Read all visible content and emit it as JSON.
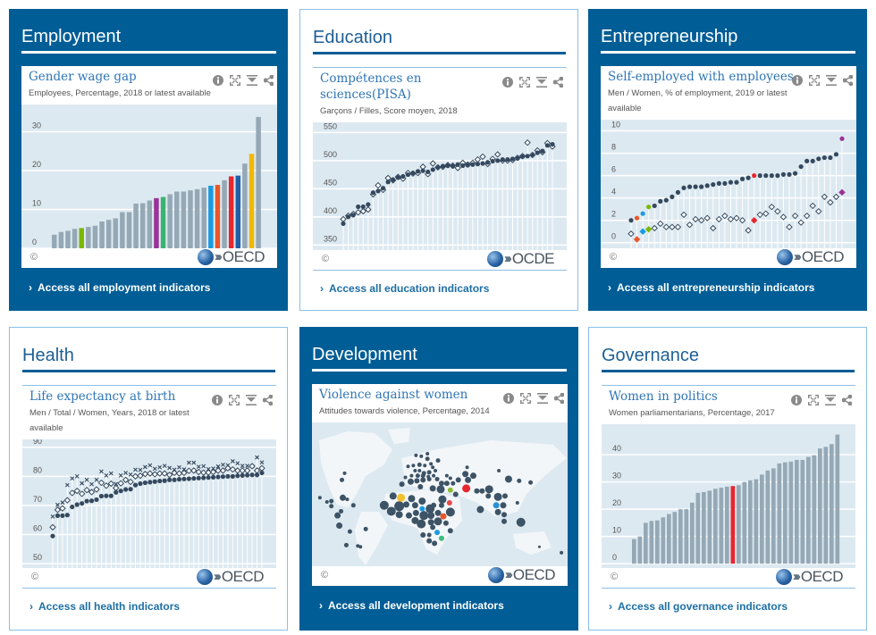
{
  "colors": {
    "dark_card": "#005d96",
    "bar_gray": "#95a8b5",
    "dot_dark": "#34495e",
    "plot_bg": "#dde9f1"
  },
  "cards": [
    {
      "heading": "Employment",
      "chart_title": "Gender wage gap",
      "chart_subtitle": "Employees, Percentage, 2018 or latest available",
      "copyright": "©",
      "logo": "OECD",
      "link": "Access all employment indicators",
      "theme": "dark"
    },
    {
      "heading": "Education",
      "chart_title": "Compétences en sciences(PISA)",
      "chart_subtitle": "Garçons / Filles, Score moyen, 2018",
      "copyright": "©",
      "logo": "OCDE",
      "link": "Access all education indicators",
      "theme": "light"
    },
    {
      "heading": "Entrepreneurship",
      "chart_title": "Self-employed with employees",
      "chart_subtitle": "Men / Women, % of employment, 2019 or latest available",
      "copyright": "©",
      "logo": "OECD",
      "link": "Access all entrepreneurship indicators",
      "theme": "dark"
    },
    {
      "heading": "Health",
      "chart_title": "Life expectancy at birth",
      "chart_subtitle": "Men / Total / Women, Years, 2018 or latest available",
      "copyright": "©",
      "logo": "OECD",
      "link": "Access all health indicators",
      "theme": "light"
    },
    {
      "heading": "Development",
      "chart_title": "Violence against women",
      "chart_subtitle": "Attitudes towards violence, Percentage, 2014",
      "copyright": "©",
      "logo": "OECD",
      "link": "Access all development indicators",
      "theme": "dark"
    },
    {
      "heading": "Governance",
      "chart_title": "Women in politics",
      "chart_subtitle": "Women parliamentarians, Percentage, 2017",
      "copyright": "©",
      "logo": "OECD",
      "link": "Access all governance indicators",
      "theme": "light"
    }
  ],
  "tool_icons": [
    "info-icon",
    "expand-icon",
    "download-icon",
    "share-icon"
  ],
  "chart_data": [
    {
      "type": "bar",
      "ylim": [
        0,
        37
      ],
      "yticks": [
        0,
        10,
        20,
        30
      ],
      "grid": true,
      "values": [
        3.5,
        4.2,
        4.5,
        5,
        5.2,
        5.5,
        5.8,
        6.9,
        7.3,
        7.7,
        9.3,
        9.3,
        11.5,
        11.6,
        12.3,
        12.9,
        13.2,
        13.9,
        14.6,
        14.6,
        14.9,
        15.2,
        15.6,
        16.1,
        16.3,
        17.5,
        18.5,
        18.7,
        21.8,
        24.3,
        33.8
      ],
      "highlights": {
        "4": "#7ab800",
        "15": "#993399",
        "16": "#3cb371",
        "23": "#1a9be0",
        "24": "#e8572a",
        "26": "#e8262e",
        "27": "#1f5fa8",
        "29": "#f2b800"
      }
    },
    {
      "type": "scatter",
      "ylim": [
        341,
        568
      ],
      "yticks": [
        350,
        400,
        450,
        500,
        550
      ],
      "grid": true,
      "series": [
        {
          "marker": "dot",
          "values": [
            388,
            400,
            403,
            418,
            418,
            422,
            443,
            446,
            451,
            462,
            466,
            470,
            472,
            475,
            478,
            481,
            482,
            480,
            484,
            488,
            490,
            491,
            490,
            493,
            491,
            492,
            493,
            494,
            495,
            497,
            499,
            500,
            502,
            502,
            503,
            504,
            507,
            508,
            510,
            514,
            517,
            527,
            529
          ]
        },
        {
          "marker": "diamond",
          "values": [
            396,
            402,
            405,
            408,
            410,
            413,
            440,
            456,
            448,
            469,
            465,
            471,
            468,
            478,
            477,
            478,
            489,
            476,
            495,
            488,
            489,
            492,
            491,
            487,
            496,
            493,
            496,
            502,
            507,
            494,
            503,
            511,
            500,
            500,
            501,
            505,
            508,
            532,
            510,
            518,
            515,
            531,
            525
          ]
        }
      ]
    },
    {
      "type": "scatter",
      "ylim": [
        -0.5,
        11
      ],
      "yticks": [
        0,
        2,
        4,
        6,
        8,
        10
      ],
      "grid": true,
      "series": [
        {
          "marker": "dot",
          "values": [
            2,
            2.2,
            2.6,
            3.2,
            3.3,
            3.7,
            3.8,
            4.1,
            4.5,
            4.9,
            5,
            5,
            5,
            5.1,
            5.2,
            5.3,
            5.3,
            5.4,
            5.4,
            5.7,
            5.8,
            6,
            6,
            6,
            6,
            6,
            6.1,
            6.1,
            6.2,
            6.8,
            7.3,
            7.3,
            7.5,
            7.6,
            7.6,
            7.9,
            9.3
          ]
        },
        {
          "marker": "diamond",
          "values": [
            0.8,
            0.3,
            1.0,
            1.2,
            1.3,
            1.7,
            1.4,
            1.4,
            1.4,
            2.5,
            1.6,
            2.1,
            2.0,
            2.2,
            1.3,
            2.1,
            2.4,
            2.1,
            2.2,
            2.0,
            1.1,
            2.0,
            2.5,
            2.6,
            3.2,
            2.8,
            2.3,
            1.4,
            2.4,
            1.8,
            2.4,
            3.3,
            2.8,
            4.1,
            3.6,
            4.1,
            4.5
          ]
        }
      ],
      "highlights": {
        "1": "#e8572a",
        "2": "#1a9be0",
        "3": "#7ab800",
        "21": "#e8262e",
        "36": "#993399"
      }
    },
    {
      "type": "scatter",
      "ylim": [
        48.5,
        92.7
      ],
      "yticks": [
        50,
        60,
        70,
        80,
        90
      ],
      "grid": true,
      "series": [
        {
          "marker": "dot",
          "values": [
            59.5,
            66.5,
            66.5,
            66.7,
            69.5,
            70.3,
            70.7,
            71.5,
            71.6,
            72,
            73.2,
            73.3,
            73.3,
            74.5,
            75,
            75.5,
            75.6,
            77,
            77.5,
            77.8,
            78,
            78.2,
            78.4,
            78.5,
            78.8,
            78.8,
            79,
            79.1,
            79.2,
            79.3,
            79.4,
            79.5,
            79.6,
            79.7,
            79.8,
            79.9,
            80,
            80,
            80.2,
            80.3,
            80.4,
            80.5,
            80.5,
            81.2
          ]
        },
        {
          "marker": "diamond",
          "values": [
            62.5,
            68.5,
            69,
            71.8,
            74.3,
            75,
            74,
            75.3,
            74.6,
            75.5,
            77.8,
            76.8,
            77.5,
            76,
            77.6,
            78.8,
            78.1,
            80,
            80.2,
            80.8,
            81,
            80.7,
            81,
            81,
            80.5,
            81.2,
            81,
            81.2,
            81.9,
            82,
            81.5,
            81.3,
            81.3,
            81.5,
            82,
            82,
            82.8,
            82.4,
            82,
            82,
            82,
            83.5,
            82,
            82.8
          ]
        },
        {
          "marker": "cross",
          "values": [
            66.2,
            70.2,
            71,
            77,
            79.3,
            80,
            77.6,
            78.8,
            77.3,
            78.8,
            81.7,
            80.3,
            81,
            77.4,
            80.3,
            81.2,
            80.6,
            82.3,
            82.2,
            83.2,
            83.8,
            82.6,
            83.1,
            83.6,
            82.9,
            82.3,
            83.1,
            82.4,
            84.7,
            84.7,
            83.3,
            83.5,
            82.5,
            82.7,
            83.4,
            84,
            83.8,
            85.2,
            84.5,
            83.6,
            83.6,
            83.5,
            86.5,
            84.8
          ]
        }
      ]
    },
    {
      "type": "map",
      "marker_color": "#3d5366",
      "highlight_colors": [
        "#f2c12e",
        "#1a9be0",
        "#e8572a",
        "#e8262e",
        "#8db83a",
        "#e84a4a",
        "#2a8fd6",
        "#3dbb7a",
        "#1a9be0"
      ]
    },
    {
      "type": "bar",
      "ylim": [
        -1.6,
        51.2
      ],
      "yticks": [
        0,
        10,
        20,
        30,
        40
      ],
      "grid": true,
      "values": [
        9,
        10,
        15,
        15.7,
        15.9,
        17,
        18.2,
        19,
        20,
        20,
        22.4,
        26,
        26.3,
        26.8,
        27.5,
        27.9,
        28.3,
        28.5,
        28.8,
        30,
        30.6,
        31,
        32.7,
        34.2,
        35,
        36.8,
        37.2,
        37.5,
        38.1,
        38.1,
        39.2,
        39.8,
        42.3,
        42.9,
        43.9,
        47.4
      ],
      "highlights": {
        "17": "#e8262e"
      }
    }
  ]
}
